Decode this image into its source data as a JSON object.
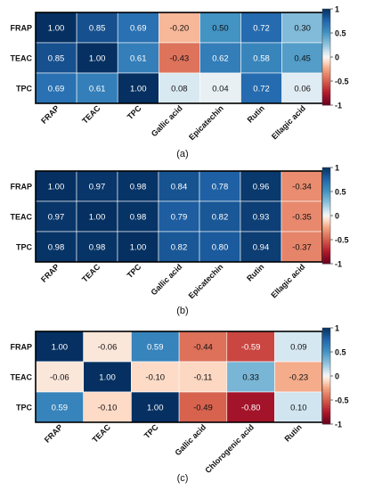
{
  "chart_data": [
    {
      "type": "heatmap",
      "panel_label": "(a)",
      "rows": [
        "FRAP",
        "TEAC",
        "TPC"
      ],
      "columns": [
        "FRAP",
        "TEAC",
        "TPC",
        "Gallic acid",
        "Epicatechin",
        "Rutin",
        "Ellagic acid"
      ],
      "values": [
        [
          1.0,
          0.85,
          0.69,
          -0.2,
          0.5,
          0.72,
          0.3
        ],
        [
          0.85,
          1.0,
          0.61,
          -0.43,
          0.62,
          0.58,
          0.45
        ],
        [
          0.69,
          0.61,
          1.0,
          0.08,
          0.04,
          0.72,
          0.06
        ]
      ],
      "colorbar": {
        "range": [
          -1,
          1
        ],
        "ticks": [
          "1",
          "0.5",
          "0",
          "-0.5",
          "-1"
        ]
      }
    },
    {
      "type": "heatmap",
      "panel_label": "(b)",
      "rows": [
        "FRAP",
        "TEAC",
        "TPC"
      ],
      "columns": [
        "FRAP",
        "TEAC",
        "TPC",
        "Gallic acid",
        "Epicatechin",
        "Rutin",
        "Ellagic acid"
      ],
      "values": [
        [
          1.0,
          0.97,
          0.98,
          0.84,
          0.78,
          0.96,
          -0.34
        ],
        [
          0.97,
          1.0,
          0.98,
          0.79,
          0.82,
          0.93,
          -0.35
        ],
        [
          0.98,
          0.98,
          1.0,
          0.82,
          0.8,
          0.94,
          -0.37
        ]
      ],
      "colorbar": {
        "range": [
          -1,
          1
        ],
        "ticks": [
          "1",
          "0.5",
          "0",
          "-0.5",
          "-1"
        ]
      }
    },
    {
      "type": "heatmap",
      "panel_label": "(c)",
      "rows": [
        "FRAP",
        "TEAC",
        "TPC"
      ],
      "columns": [
        "FRAP",
        "TEAC",
        "TPC",
        "Gallic acid",
        "Chlorogenic acid",
        "Rutin"
      ],
      "values": [
        [
          1.0,
          -0.06,
          0.59,
          -0.44,
          -0.59,
          0.09
        ],
        [
          -0.06,
          1.0,
          -0.1,
          -0.11,
          0.33,
          -0.23
        ],
        [
          0.59,
          -0.1,
          1.0,
          -0.49,
          -0.8,
          0.1
        ]
      ],
      "colorbar": {
        "range": [
          -1,
          1
        ],
        "ticks": [
          "1",
          "0.5",
          "0",
          "-0.5",
          "-1"
        ]
      }
    }
  ]
}
